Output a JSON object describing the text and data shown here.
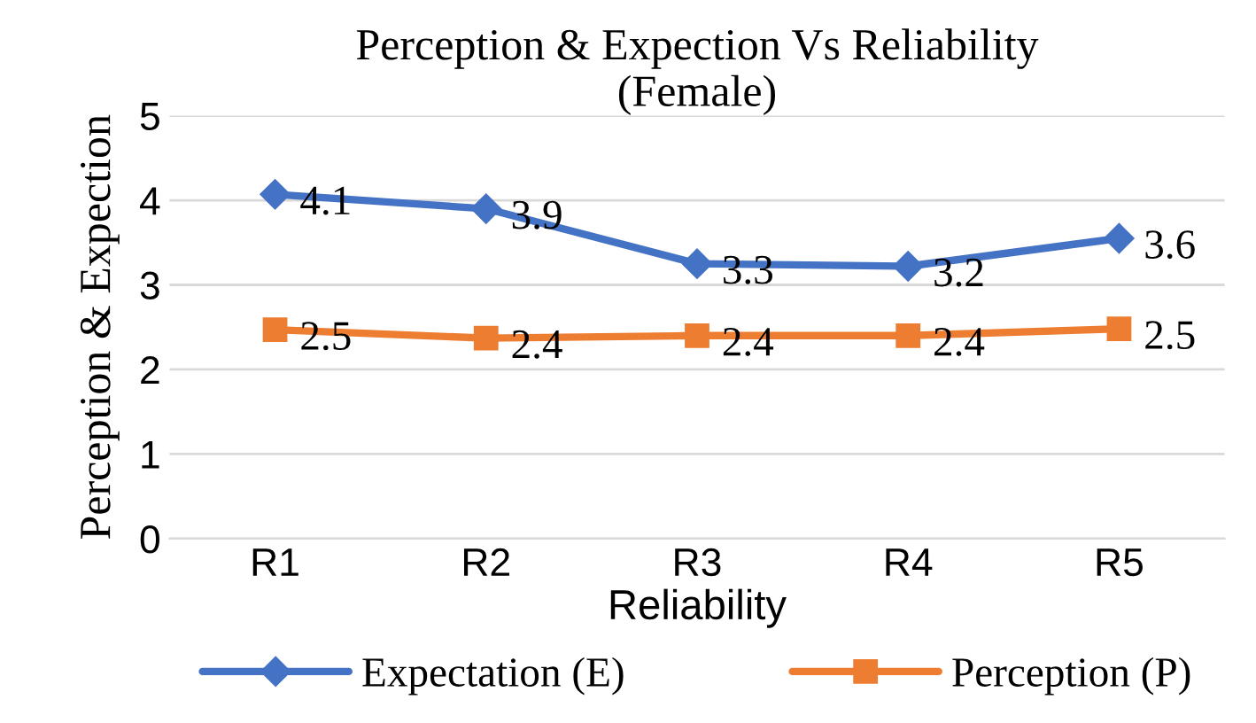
{
  "chart_data": {
    "type": "line",
    "title": "Perception & Expection Vs Reliability\n(Female)",
    "xlabel": "Reliability",
    "ylabel": "Perception & Expection",
    "categories": [
      "R1",
      "R2",
      "R3",
      "R4",
      "R5"
    ],
    "series": [
      {
        "name": "Expectation (E)",
        "color": "#4472c4",
        "marker": "diamond",
        "values": [
          4.07,
          3.9,
          3.25,
          3.22,
          3.55
        ],
        "value_labels": [
          "4.1",
          "3.9",
          "3.3",
          "3.2",
          "3.6"
        ]
      },
      {
        "name": "Perception (P)",
        "color": "#ed7d31",
        "marker": "square",
        "values": [
          2.47,
          2.37,
          2.4,
          2.4,
          2.48
        ],
        "value_labels": [
          "2.5",
          "2.4",
          "2.4",
          "2.4",
          "2.5"
        ]
      }
    ],
    "ylim": [
      0,
      5
    ],
    "yticks": [
      0,
      1,
      2,
      3,
      4,
      5
    ],
    "grid": "y",
    "legend": "bottom"
  }
}
